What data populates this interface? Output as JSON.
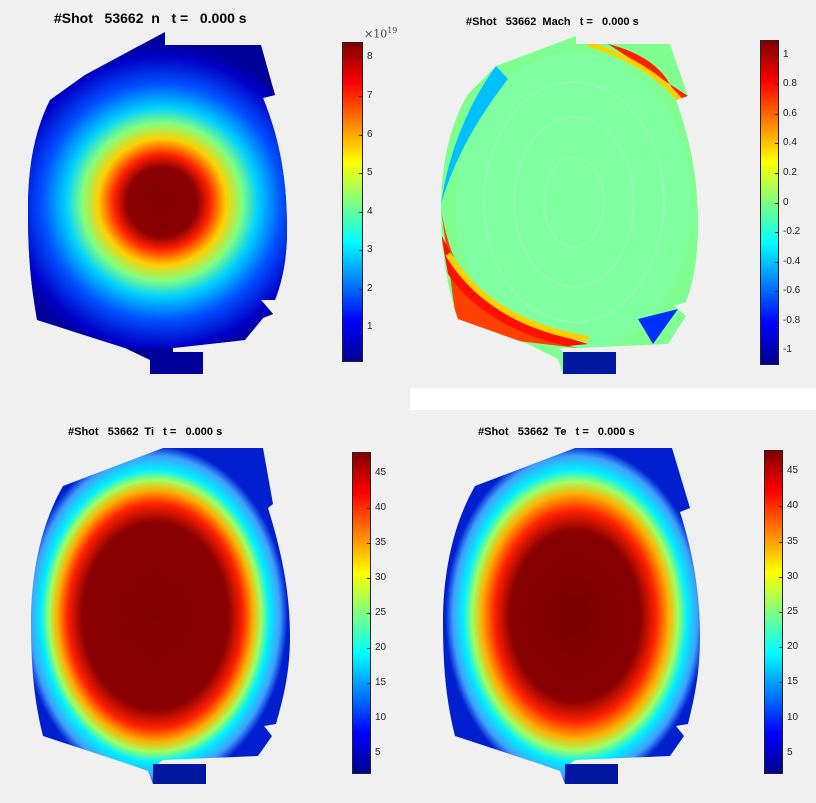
{
  "figure": {
    "panels": [
      {
        "title": "#Shot   53662  n   t =   0.000 s",
        "ticks": [
          "1",
          "2",
          "3",
          "4",
          "5",
          "6",
          "7",
          "8"
        ],
        "exponent_base": "×10",
        "exponent_power": "19"
      },
      {
        "title": "#Shot   53662  Mach   t =   0.000 s",
        "ticks": [
          "-1",
          "-0.8",
          "-0.6",
          "-0.4",
          "-0.2",
          "0",
          "0.2",
          "0.4",
          "0.6",
          "0.8",
          "1"
        ]
      },
      {
        "title": "#Shot   53662  Ti   t =   0.000 s",
        "ticks": [
          "5",
          "10",
          "15",
          "20",
          "25",
          "30",
          "35",
          "40",
          "45"
        ]
      },
      {
        "title": "#Shot   53662  Te   t =   0.000 s",
        "ticks": [
          "5",
          "10",
          "15",
          "20",
          "25",
          "30",
          "35",
          "40",
          "45"
        ]
      }
    ]
  },
  "chart_data": [
    {
      "type": "heatmap",
      "title": "#Shot   53662  n   t =   0.000 s",
      "quantity": "n",
      "colorbar_range": [
        0.1,
        8.4
      ],
      "colorbar_ticks": [
        1,
        2,
        3,
        4,
        5,
        6,
        7,
        8
      ],
      "colorbar_exponent": 19,
      "colormap": "jet",
      "profile": "peaked core density"
    },
    {
      "type": "heatmap",
      "title": "#Shot   53662  Mach   t =   0.000 s",
      "quantity": "Mach",
      "colorbar_range": [
        -1.1,
        1.1
      ],
      "colorbar_ticks": [
        -1,
        -0.8,
        -0.6,
        -0.4,
        -0.2,
        0,
        0.2,
        0.4,
        0.6,
        0.8,
        1
      ],
      "colormap": "jet"
    },
    {
      "type": "heatmap",
      "title": "#Shot   53662  Ti   t =   0.000 s",
      "quantity": "Ti",
      "colorbar_range": [
        2,
        48
      ],
      "colorbar_ticks": [
        5,
        10,
        15,
        20,
        25,
        30,
        35,
        40,
        45
      ],
      "colormap": "jet"
    },
    {
      "type": "heatmap",
      "title": "#Shot   53662  Te   t =   0.000 s",
      "quantity": "Te",
      "colorbar_range": [
        2,
        48
      ],
      "colorbar_ticks": [
        5,
        10,
        15,
        20,
        25,
        30,
        35,
        40,
        45
      ],
      "colormap": "jet"
    }
  ]
}
